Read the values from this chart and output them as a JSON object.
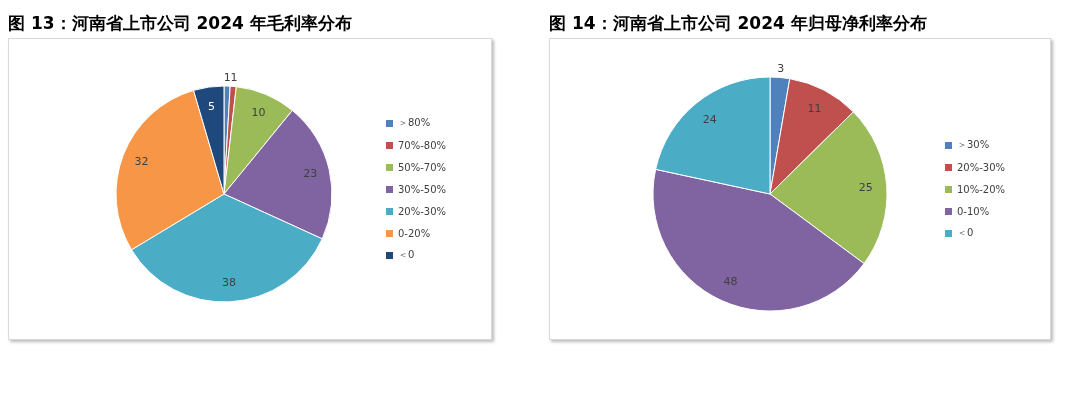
{
  "chart_data": [
    {
      "type": "pie",
      "title": "图 13：河南省上市公司 2024 年毛利率分布",
      "categories": [
        "＞80%",
        "70%-80%",
        "50%-70%",
        "30%-50%",
        "20%-30%",
        "0-20%",
        "＜0"
      ],
      "values": [
        1,
        1,
        10,
        23,
        38,
        32,
        5
      ],
      "colors": [
        "#4f81bd",
        "#c0504d",
        "#9bbb59",
        "#8064a2",
        "#4bacc6",
        "#f79646",
        "#1f497d"
      ],
      "data_labels": true,
      "legend": "right"
    },
    {
      "type": "pie",
      "title": "图 14：河南省上市公司 2024 年归母净利率分布",
      "categories": [
        "＞30%",
        "20%-30%",
        "10%-20%",
        "0-10%",
        "＜0"
      ],
      "values": [
        3,
        11,
        25,
        48,
        24
      ],
      "colors": [
        "#4f81bd",
        "#c0504d",
        "#9bbb59",
        "#8064a2",
        "#4bacc6"
      ],
      "data_labels": true,
      "legend": "right"
    }
  ]
}
